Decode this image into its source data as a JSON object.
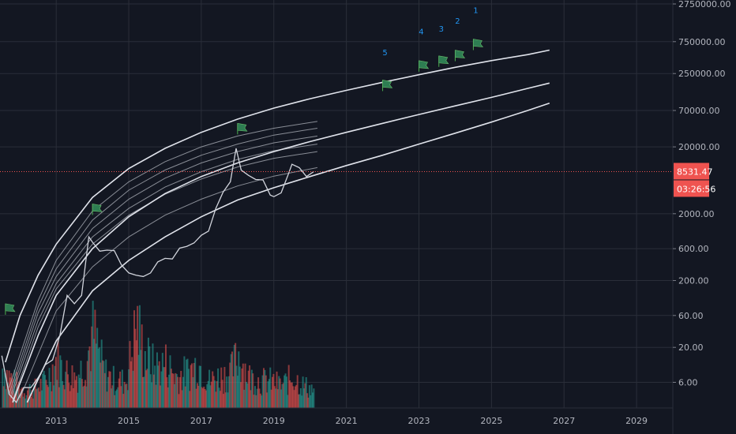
{
  "chart_data": {
    "type": "line",
    "title": "",
    "xlabel": "",
    "ylabel": "",
    "y_scale": "log",
    "ylim": [
      3,
      2750000
    ],
    "xlim": [
      2011.45,
      2030.0
    ],
    "grid": true,
    "y_ticks": [
      {
        "value": 2750000,
        "label": "2750000.00"
      },
      {
        "value": 750000,
        "label": "750000.00"
      },
      {
        "value": 250000,
        "label": "250000.00"
      },
      {
        "value": 70000,
        "label": "70000.00"
      },
      {
        "value": 20000,
        "label": "20000.00"
      },
      {
        "value": 2000,
        "label": "2000.00"
      },
      {
        "value": 600,
        "label": "600.00"
      },
      {
        "value": 200,
        "label": "200.00"
      },
      {
        "value": 60,
        "label": "60.00"
      },
      {
        "value": 20,
        "label": "20.00"
      },
      {
        "value": 6,
        "label": "6.00"
      }
    ],
    "x_ticks": [
      {
        "value": 2013,
        "label": "2013"
      },
      {
        "value": 2015,
        "label": "2015"
      },
      {
        "value": 2017,
        "label": "2017"
      },
      {
        "value": 2019,
        "label": "2019"
      },
      {
        "value": 2021,
        "label": "2021"
      },
      {
        "value": 2023,
        "label": "2023"
      },
      {
        "value": 2025,
        "label": "2025"
      },
      {
        "value": 2027,
        "label": "2027"
      },
      {
        "value": 2029,
        "label": "2029"
      }
    ],
    "current_price": {
      "value": 8531.47,
      "label": "8531.47",
      "countdown": "03:26:56",
      "color": "#ef5350"
    },
    "price_series": {
      "name": "",
      "color": "#d1d4dc",
      "x": [
        2011.5,
        2011.7,
        2011.9,
        2012.1,
        2012.3,
        2012.5,
        2012.7,
        2012.9,
        2013.1,
        2013.3,
        2013.5,
        2013.7,
        2013.9,
        2014.0,
        2014.2,
        2014.4,
        2014.6,
        2014.8,
        2015.0,
        2015.2,
        2015.4,
        2015.6,
        2015.8,
        2016.0,
        2016.2,
        2016.4,
        2016.6,
        2016.8,
        2017.0,
        2017.2,
        2017.4,
        2017.6,
        2017.8,
        2017.96,
        2018.1,
        2018.3,
        2018.5,
        2018.7,
        2018.9,
        2019.0,
        2019.2,
        2019.4,
        2019.5,
        2019.7,
        2019.9,
        2020.1
      ],
      "values": [
        15,
        4,
        3,
        5,
        5,
        7,
        11,
        13,
        30,
        120,
        90,
        120,
        900,
        750,
        550,
        570,
        560,
        340,
        260,
        240,
        230,
        260,
        380,
        430,
        420,
        610,
        650,
        730,
        950,
        1100,
        2400,
        4200,
        6000,
        19000,
        9000,
        7500,
        6500,
        6400,
        3800,
        3600,
        4100,
        7800,
        11000,
        9800,
        7200,
        8531
      ]
    },
    "fit_curves": [
      {
        "name": "",
        "x": [
          2011.6,
          2012.0,
          2012.5,
          2013.0,
          2014.0,
          2015.0,
          2016.0,
          2017.0,
          2018.0,
          2019.0,
          2020.0,
          2021.0,
          2022.0,
          2023.0,
          2024.0,
          2025.0,
          2026.0,
          2026.6
        ],
        "values": [
          12,
          60,
          240,
          700,
          3500,
          9500,
          19000,
          33000,
          52000,
          76000,
          105000,
          140000,
          185000,
          240000,
          310000,
          390000,
          480000,
          560000
        ]
      },
      {
        "name": "",
        "x": [
          2011.8,
          2012.5,
          2013.0,
          2014.0,
          2015.0,
          2016.0,
          2017.0,
          2018.0,
          2019.0,
          2020.0,
          2021.0,
          2022.0,
          2023.0,
          2024.0,
          2025.0,
          2026.0,
          2026.6
        ],
        "values": [
          3,
          30,
          120,
          600,
          1800,
          4000,
          7200,
          11500,
          17000,
          24000,
          33000,
          45000,
          61000,
          82000,
          110000,
          150000,
          180000
        ]
      },
      {
        "name": "",
        "x": [
          2012.2,
          2013.0,
          2014.0,
          2015.0,
          2016.0,
          2017.0,
          2018.0,
          2019.0,
          2020.0,
          2021.0,
          2022.0,
          2023.0,
          2024.0,
          2025.0,
          2026.0,
          2026.6
        ],
        "values": [
          3,
          25,
          140,
          400,
          900,
          1800,
          3200,
          4900,
          7200,
          10500,
          15000,
          22000,
          32000,
          47000,
          70000,
          90000
        ]
      }
    ],
    "band_lines": [
      {
        "x": [
          2011.7,
          2012.5,
          2013.0,
          2014.0,
          2015.0,
          2016.0,
          2017.0,
          2018.0,
          2019.0,
          2020.2
        ],
        "values": [
          5,
          100,
          400,
          2200,
          6000,
          12000,
          20000,
          29000,
          38000,
          48000
        ]
      },
      {
        "x": [
          2011.7,
          2012.5,
          2013.0,
          2014.0,
          2015.0,
          2016.0,
          2017.0,
          2018.0,
          2019.0,
          2020.2
        ],
        "values": [
          4,
          80,
          300,
          1600,
          4500,
          9000,
          15000,
          22000,
          30000,
          38000
        ]
      },
      {
        "x": [
          2011.75,
          2012.5,
          2013.0,
          2014.0,
          2015.0,
          2016.0,
          2017.0,
          2018.0,
          2019.0,
          2020.2
        ],
        "values": [
          4,
          65,
          230,
          1200,
          3300,
          6800,
          11500,
          17000,
          23000,
          29000
        ]
      },
      {
        "x": [
          2011.75,
          2012.5,
          2013.0,
          2014.0,
          2015.0,
          2016.0,
          2017.0,
          2018.0,
          2019.0,
          2020.2
        ],
        "values": [
          3.5,
          50,
          180,
          900,
          2400,
          5000,
          8500,
          13000,
          17500,
          22000
        ]
      },
      {
        "x": [
          2011.8,
          2012.5,
          2013.0,
          2014.0,
          2015.0,
          2016.0,
          2017.0,
          2018.0,
          2019.0,
          2020.2
        ],
        "values": [
          3.2,
          40,
          150,
          700,
          1900,
          3900,
          6600,
          10000,
          13500,
          17000
        ]
      },
      {
        "x": [
          2012.0,
          2013.0,
          2014.0,
          2015.0,
          2016.0,
          2017.0,
          2018.0,
          2019.0,
          2020.2
        ],
        "values": [
          3.5,
          70,
          320,
          900,
          1900,
          3300,
          5200,
          7300,
          9800
        ]
      }
    ],
    "flags": [
      {
        "x": 2011.6,
        "y": 90
      },
      {
        "x": 2014.0,
        "y": 2800
      },
      {
        "x": 2018.0,
        "y": 45000
      },
      {
        "x": 2022.0,
        "y": 200000
      },
      {
        "x": 2023.0,
        "y": 390000
      },
      {
        "x": 2023.55,
        "y": 460000
      },
      {
        "x": 2024.0,
        "y": 560000
      },
      {
        "x": 2024.5,
        "y": 820000
      }
    ],
    "annotations": [
      {
        "x": 2022.0,
        "y": 470000,
        "text": "5"
      },
      {
        "x": 2023.0,
        "y": 960000,
        "text": "4"
      },
      {
        "x": 2023.55,
        "y": 1060000,
        "text": "3"
      },
      {
        "x": 2024.0,
        "y": 1400000,
        "text": "2"
      },
      {
        "x": 2024.5,
        "y": 2000000,
        "text": "1"
      }
    ],
    "volume": {
      "x": [
        2011.5,
        2011.8,
        2012.1,
        2012.4,
        2012.7,
        2013.0,
        2013.2,
        2013.5,
        2013.8,
        2014.0,
        2014.3,
        2014.6,
        2014.9,
        2015.0,
        2015.2,
        2015.4,
        2015.7,
        2016.0,
        2016.3,
        2016.6,
        2016.9,
        2017.2,
        2017.5,
        2017.8,
        2018.0,
        2018.3,
        2018.6,
        2018.9,
        2019.2,
        2019.5,
        2019.8,
        2020.1
      ],
      "values": [
        0.45,
        0.3,
        0.2,
        0.22,
        0.3,
        0.55,
        0.4,
        0.35,
        0.5,
        0.85,
        0.4,
        0.3,
        0.3,
        0.5,
        0.95,
        0.6,
        0.45,
        0.5,
        0.35,
        0.4,
        0.5,
        0.3,
        0.35,
        0.4,
        0.6,
        0.35,
        0.3,
        0.3,
        0.25,
        0.35,
        0.25,
        0.2
      ],
      "up_color": "#26a69a",
      "down_color": "#ef5350"
    }
  }
}
